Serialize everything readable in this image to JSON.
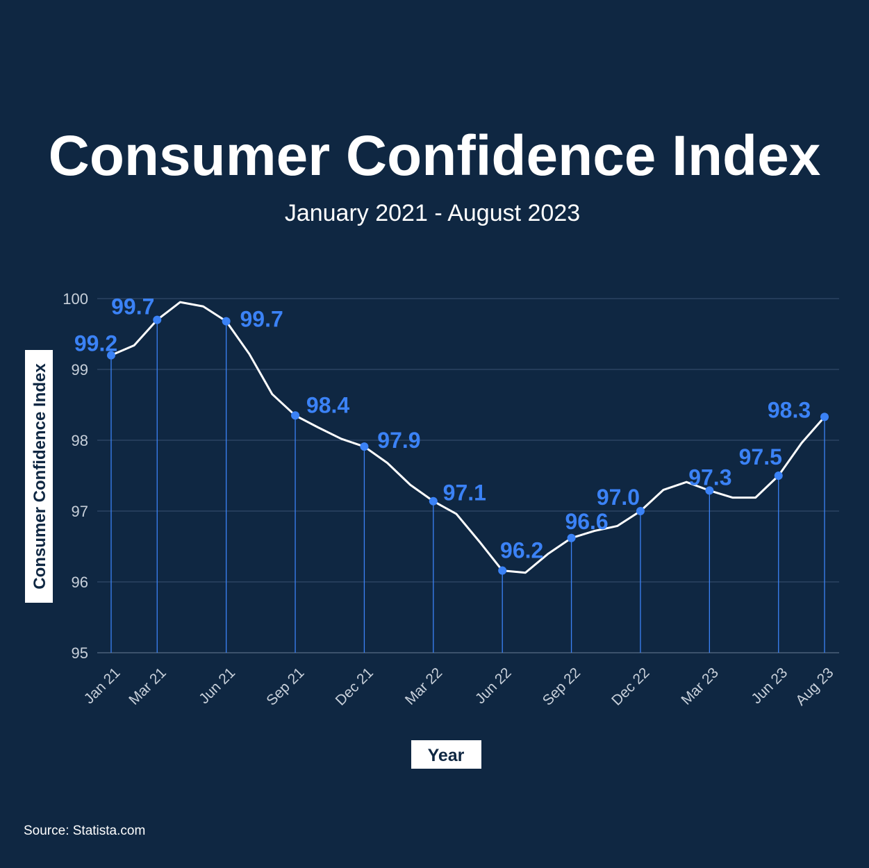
{
  "chart_data": {
    "type": "line",
    "title": "Consumer Confidence Index",
    "subtitle": "January 2021 - August 2023",
    "xlabel": "Year",
    "ylabel": "Consumer Confidence Index",
    "ylim": [
      95,
      100
    ],
    "yticks": [
      95,
      96,
      97,
      98,
      99,
      100
    ],
    "grid": true,
    "x": [
      "Jan 21",
      "Feb 21",
      "Mar 21",
      "Apr 21",
      "May 21",
      "Jun 21",
      "Jul 21",
      "Aug 21",
      "Sep 21",
      "Oct 21",
      "Nov 21",
      "Dec 21",
      "Jan 22",
      "Feb 22",
      "Mar 22",
      "Apr 22",
      "May 22",
      "Jun 22",
      "Jul 22",
      "Aug 22",
      "Sep 22",
      "Oct 22",
      "Nov 22",
      "Dec 22",
      "Jan 23",
      "Feb 23",
      "Mar 23",
      "Apr 23",
      "May 23",
      "Jun 23",
      "Jul 23",
      "Aug 23"
    ],
    "values": [
      99.2,
      99.34,
      99.7,
      99.95,
      99.89,
      99.68,
      99.22,
      98.65,
      98.35,
      98.18,
      98.02,
      97.91,
      97.68,
      97.37,
      97.14,
      96.96,
      96.57,
      96.16,
      96.13,
      96.4,
      96.62,
      96.72,
      96.79,
      97.0,
      97.3,
      97.41,
      97.29,
      97.19,
      97.19,
      97.5,
      97.96,
      98.33
    ],
    "xtick_labels": [
      "Jan 21",
      "Mar 21",
      "Jun 21",
      "Sep 21",
      "Dec 21",
      "Mar 22",
      "Jun 22",
      "Sep 22",
      "Dec 22",
      "Mar 23",
      "Jun 23",
      "Aug 23"
    ],
    "labeled_points": [
      {
        "x": "Jan 21",
        "label": "99.2"
      },
      {
        "x": "Mar 21",
        "label": "99.7"
      },
      {
        "x": "Jun 21",
        "label": "99.7"
      },
      {
        "x": "Sep 21",
        "label": "98.4"
      },
      {
        "x": "Dec 21",
        "label": "97.9"
      },
      {
        "x": "Mar 22",
        "label": "97.1"
      },
      {
        "x": "Jun 22",
        "label": "96.2"
      },
      {
        "x": "Sep 22",
        "label": "96.6"
      },
      {
        "x": "Dec 22",
        "label": "97.0"
      },
      {
        "x": "Mar 23",
        "label": "97.3"
      },
      {
        "x": "Jun 23",
        "label": "97.5"
      },
      {
        "x": "Aug 23",
        "label": "98.3"
      }
    ],
    "colors": {
      "background": "#0f2742",
      "line": "#ffffff",
      "marker": "#3b82f6",
      "grid": "#3a5272",
      "tick": "#c8d0da"
    }
  },
  "source": "Source: Statista.com"
}
